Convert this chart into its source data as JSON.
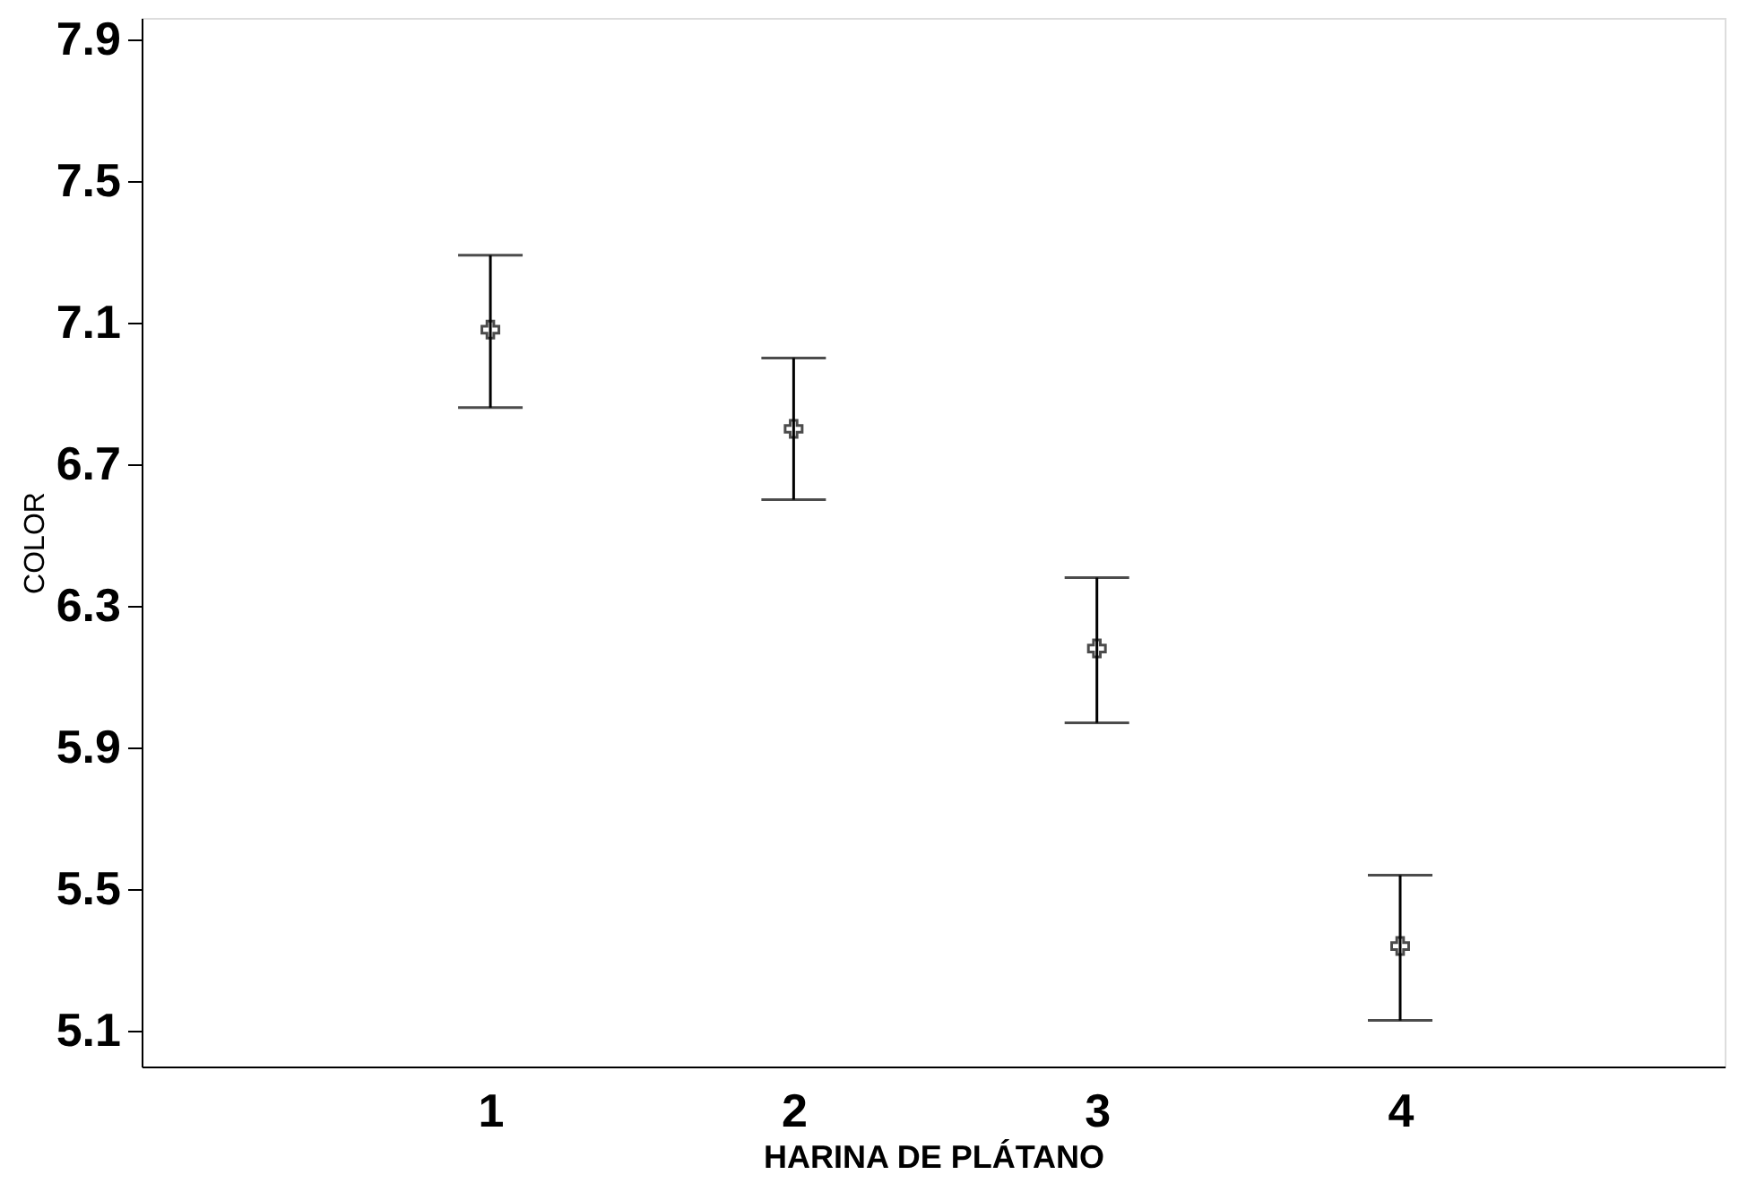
{
  "chart_data": {
    "type": "scatter",
    "xlabel": "HARINA DE PLÁTANO",
    "ylabel": "COLOR",
    "x": [
      1,
      2,
      3,
      4
    ],
    "values": [
      7.08,
      6.8,
      6.18,
      5.34
    ],
    "errors": [
      [
        6.86,
        7.29
      ],
      [
        6.6,
        7.0
      ],
      [
        5.97,
        6.38
      ],
      [
        5.13,
        5.54
      ]
    ],
    "color": "#000000",
    "marker": "cross",
    "xlim": [
      -0.15,
      5.07
    ],
    "xticks": [
      1,
      2,
      3,
      4
    ],
    "ylim": [
      5.0,
      7.96
    ],
    "yticks": [
      5.1,
      5.5,
      5.9,
      6.3,
      6.7,
      7.1,
      7.5,
      7.9
    ],
    "grid": false
  }
}
